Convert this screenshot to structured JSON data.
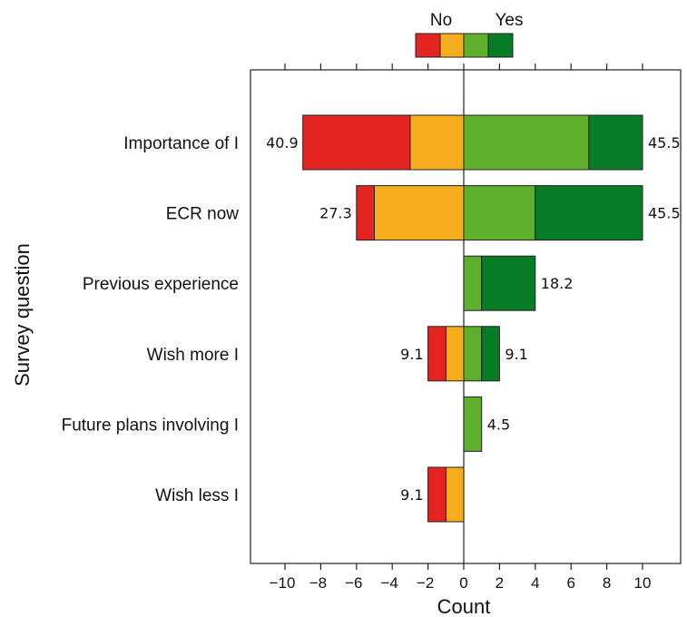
{
  "chart_data": {
    "type": "bar",
    "orientation": "horizontal-diverging",
    "xlabel": "Count",
    "ylabel": "Survey question",
    "xlim": [
      -12,
      12
    ],
    "xticks": [
      -10,
      -8,
      -6,
      -4,
      -2,
      0,
      2,
      4,
      6,
      8,
      10
    ],
    "legend": {
      "position": "top",
      "labels": {
        "no": "No",
        "yes": "Yes"
      }
    },
    "colors": {
      "strong_no": "#e42421",
      "no": "#f5ad1d",
      "yes": "#5eb02c",
      "strong_yes": "#067c26"
    },
    "series": [
      {
        "key": "strong_no",
        "direction": "negative"
      },
      {
        "key": "no",
        "direction": "negative"
      },
      {
        "key": "yes",
        "direction": "positive"
      },
      {
        "key": "strong_yes",
        "direction": "positive"
      }
    ],
    "categories": [
      "Importance of I",
      "ECR now",
      "Previous experience",
      "Wish more I",
      "Future plans involving I",
      "Wish less I"
    ],
    "rows": [
      {
        "label": "Importance of I",
        "strong_no": 6,
        "no": 3,
        "yes": 7,
        "strong_yes": 3,
        "neg_pct": "40.9",
        "pos_pct": "45.5"
      },
      {
        "label": "ECR now",
        "strong_no": 1,
        "no": 5,
        "yes": 4,
        "strong_yes": 6,
        "neg_pct": "27.3",
        "pos_pct": "45.5"
      },
      {
        "label": "Previous experience",
        "strong_no": 0,
        "no": 0,
        "yes": 1,
        "strong_yes": 3,
        "neg_pct": "",
        "pos_pct": "18.2"
      },
      {
        "label": "Wish more I",
        "strong_no": 1,
        "no": 1,
        "yes": 1,
        "strong_yes": 1,
        "neg_pct": "9.1",
        "pos_pct": "9.1"
      },
      {
        "label": "Future plans involving I",
        "strong_no": 0,
        "no": 0,
        "yes": 1,
        "strong_yes": 0,
        "neg_pct": "",
        "pos_pct": "4.5"
      },
      {
        "label": "Wish less I",
        "strong_no": 1,
        "no": 1,
        "yes": 0,
        "strong_yes": 0,
        "neg_pct": "9.1",
        "pos_pct": ""
      }
    ]
  }
}
